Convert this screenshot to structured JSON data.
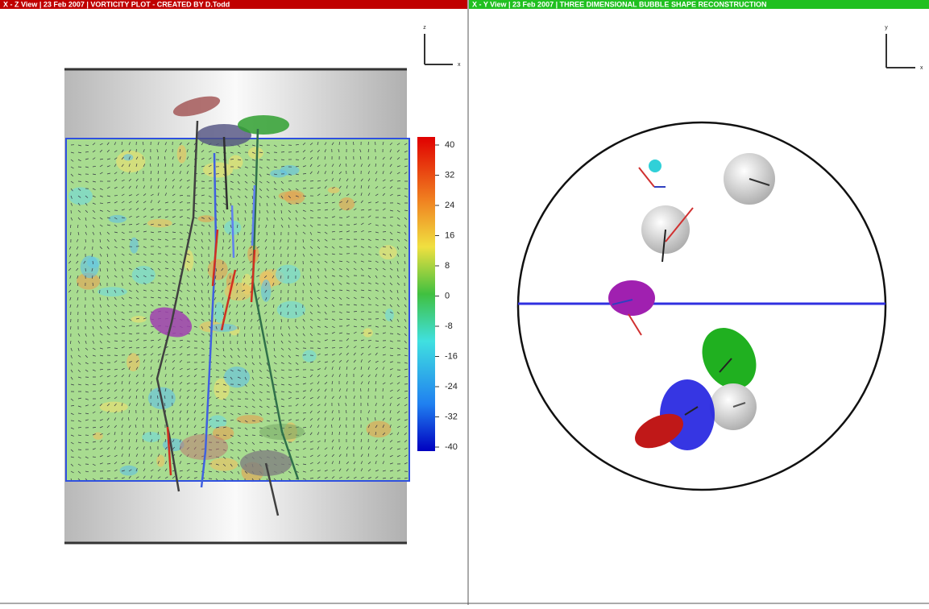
{
  "left_panel": {
    "header": "X - Z View | 23 Feb 2007 | VORTICITY PLOT - CREATED BY D.Todd",
    "axis_labels": {
      "vertical": "z",
      "horizontal": "x"
    },
    "colorbar": {
      "ticks": [
        40,
        32,
        24,
        16,
        8,
        0,
        -8,
        -16,
        -24,
        -32,
        -40
      ]
    }
  },
  "right_panel": {
    "header": "X - Y View | 23 Feb 2007 | THREE DIMENSIONAL BUBBLE SHAPE RECONSTRUCTION",
    "axis_labels": {
      "vertical": "y",
      "horizontal": "x"
    }
  }
}
